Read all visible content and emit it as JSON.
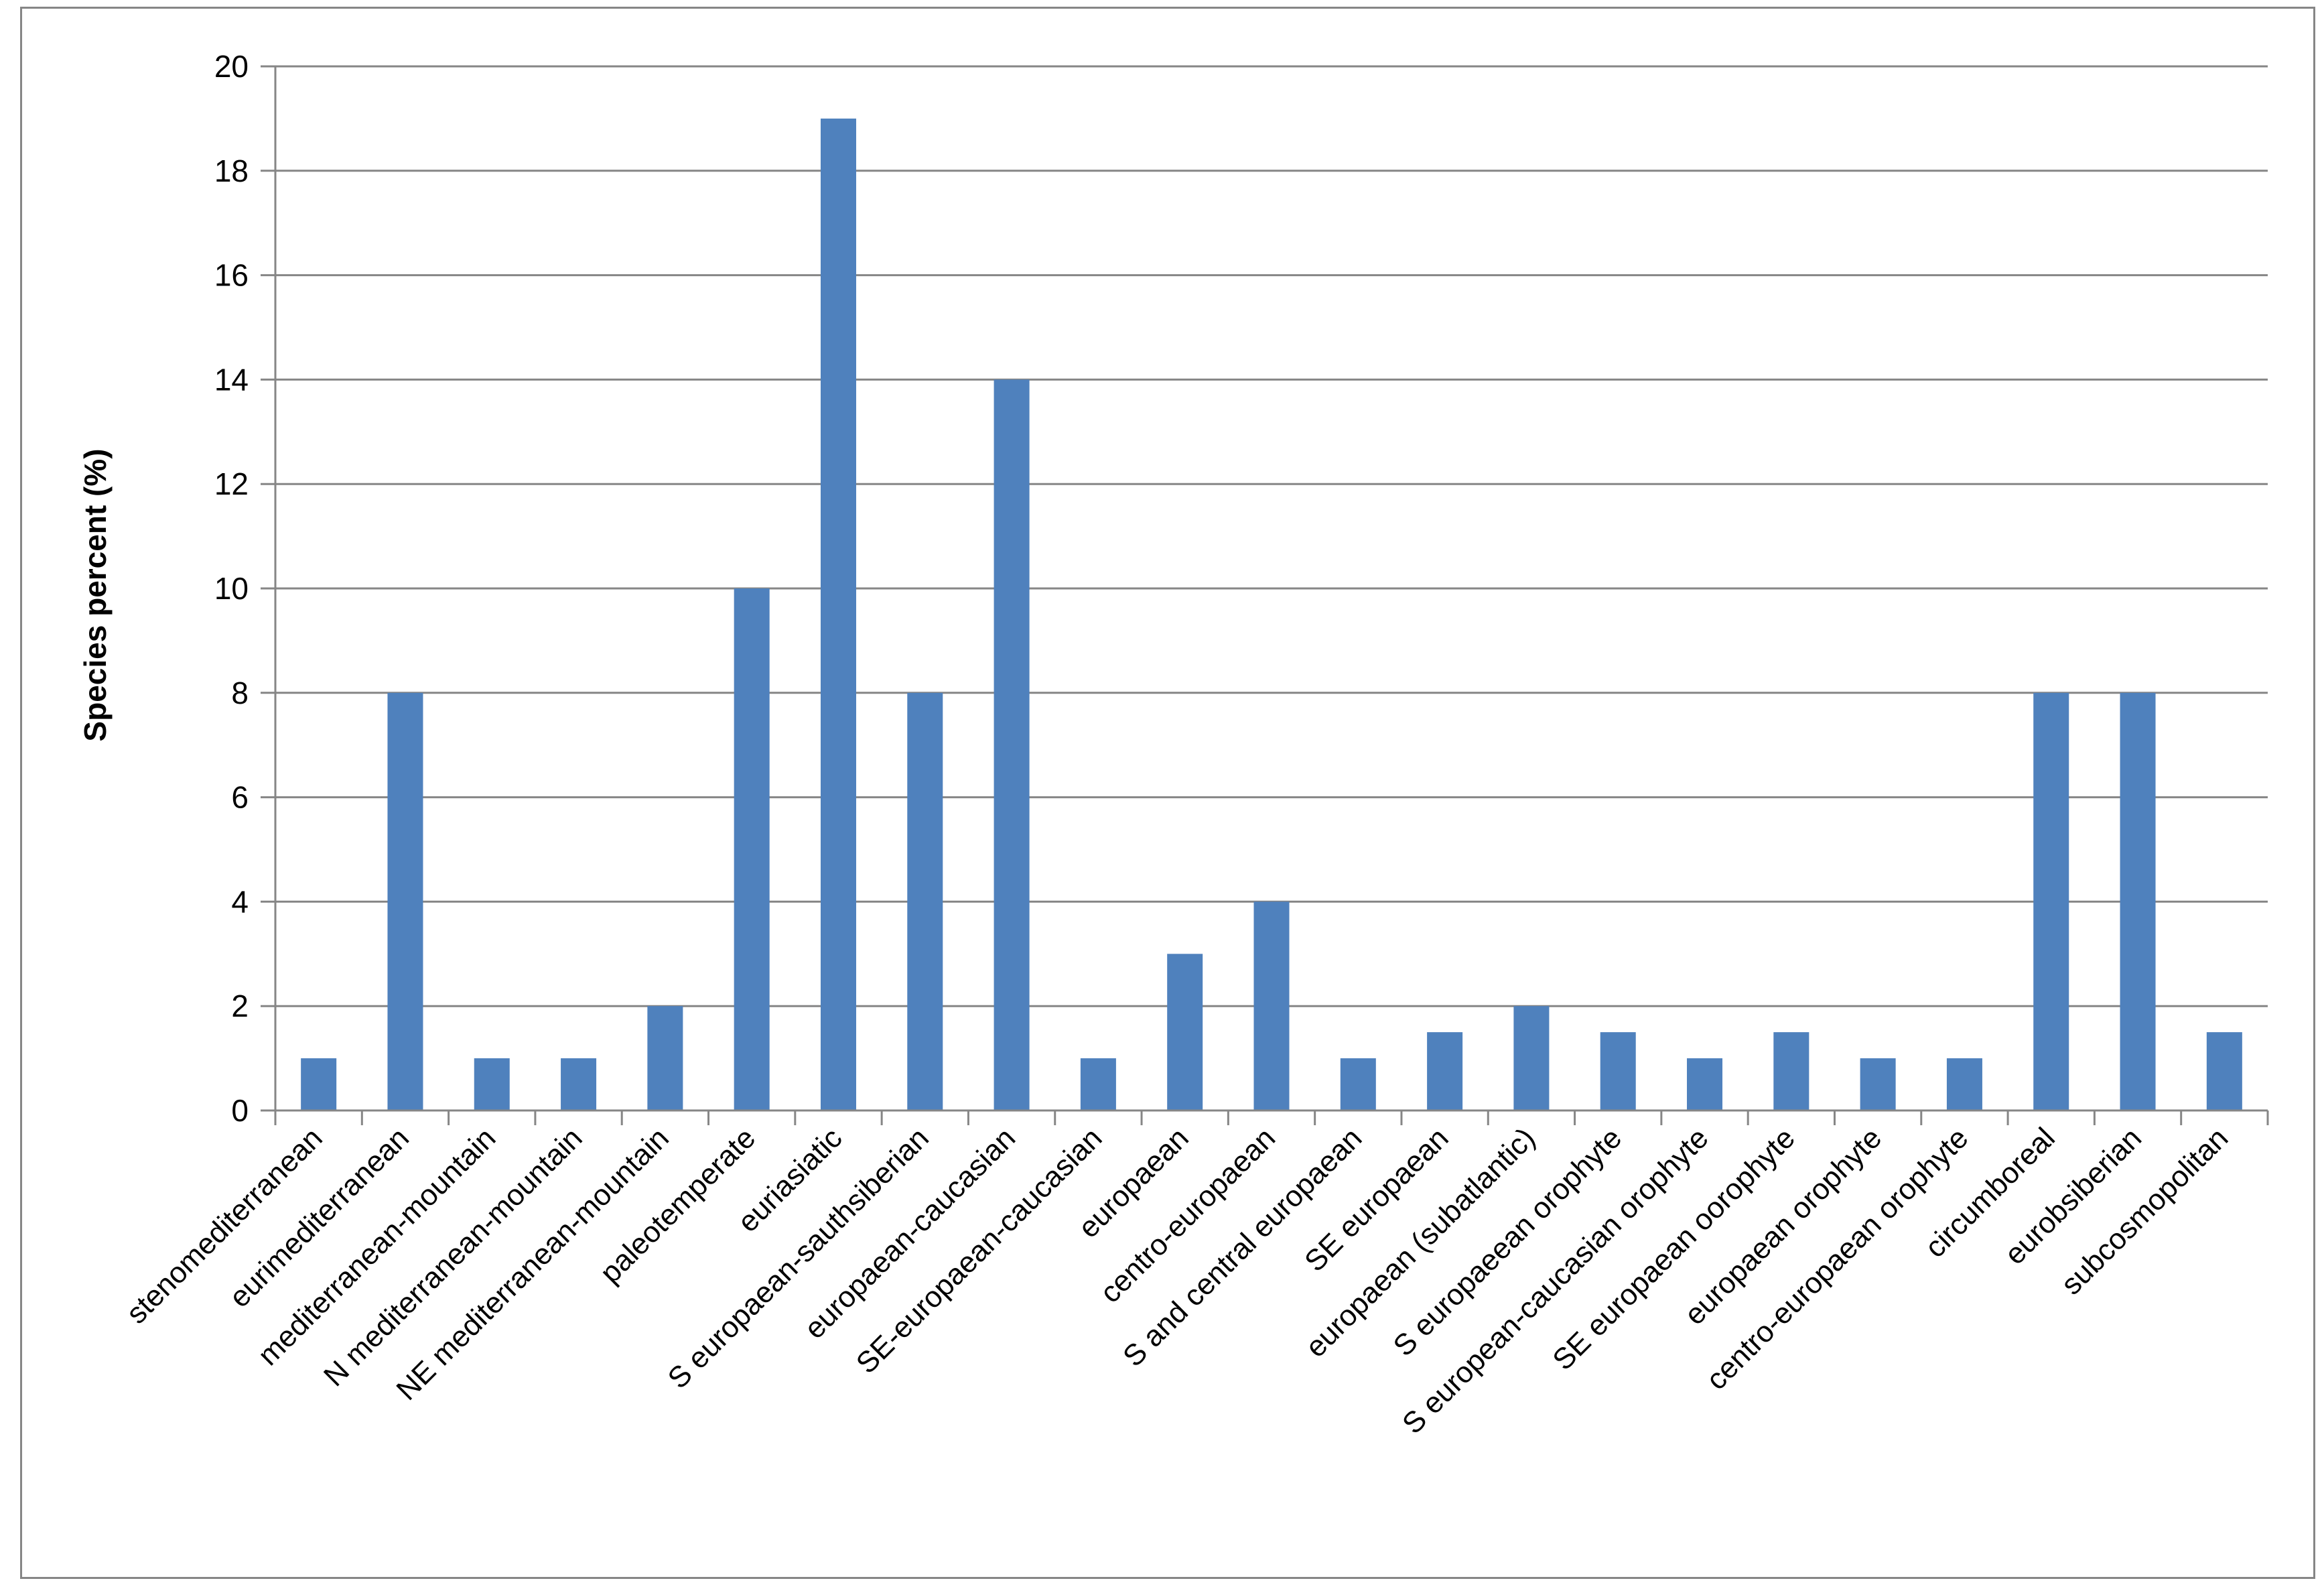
{
  "chart_data": {
    "type": "bar",
    "title": "",
    "xlabel": "",
    "ylabel": "Species percent (%)",
    "ylim": [
      0,
      20
    ],
    "yticks": [
      0,
      2,
      4,
      6,
      8,
      10,
      12,
      14,
      16,
      18,
      20
    ],
    "grid": true,
    "legend": "none",
    "bar_color": "#4f81bd",
    "categories": [
      "stenomediterranean",
      "eurimediterranean",
      "mediterranean-mountain",
      "N mediterranean-mountain",
      "NE mediterranean-mountain",
      "paleotemperate",
      "euriasiatic",
      "S europaean-sauthsiberian",
      "europaean-caucasian",
      "SE-europaean-caucasian",
      "europaean",
      "centro-europaean",
      "S and central europaean",
      "SE europaean",
      "europaean (subatlantic)",
      "S europaeean orophyte",
      "S european-caucasian orophyte",
      "SE europaean oorophyte",
      "europaean orophyte",
      "centro-europaean orophyte",
      "circumboreal",
      "eurobsiberian",
      "subcosmopolitan"
    ],
    "values": [
      1,
      8,
      1,
      1,
      2,
      10,
      19,
      8,
      14,
      1,
      3,
      4,
      1,
      1.5,
      2,
      1.5,
      1,
      1.5,
      1,
      1,
      8,
      8,
      1.5
    ]
  }
}
